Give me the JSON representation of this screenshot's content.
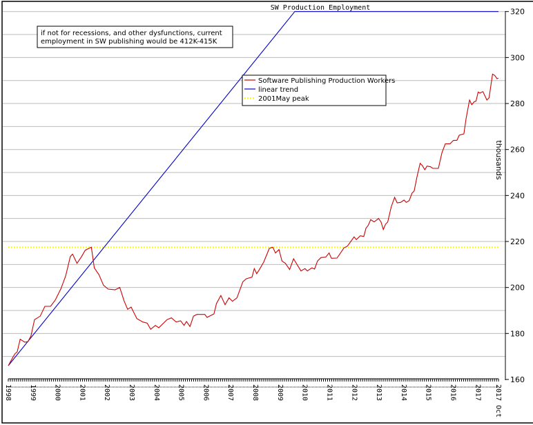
{
  "chart_data": {
    "type": "line",
    "title": "SW Production Employment",
    "xlabel": "",
    "ylabel": "thousands",
    "ylim": [
      160,
      320
    ],
    "yticks": [
      160,
      180,
      200,
      220,
      240,
      260,
      280,
      300,
      320
    ],
    "ygrid_step": 10,
    "xlim": [
      1998.0,
      2017.83
    ],
    "xtick_labels": [
      {
        "x": 1998,
        "label": "1998"
      },
      {
        "x": 1999,
        "label": "1999"
      },
      {
        "x": 2000,
        "label": "2000"
      },
      {
        "x": 2001,
        "label": "2001"
      },
      {
        "x": 2002,
        "label": "2002"
      },
      {
        "x": 2003,
        "label": "2003"
      },
      {
        "x": 2004,
        "label": "2004"
      },
      {
        "x": 2005,
        "label": "2005"
      },
      {
        "x": 2006,
        "label": "2006"
      },
      {
        "x": 2007,
        "label": "2007"
      },
      {
        "x": 2008,
        "label": "2008"
      },
      {
        "x": 2009,
        "label": "2009"
      },
      {
        "x": 2010,
        "label": "2010"
      },
      {
        "x": 2011,
        "label": "2011"
      },
      {
        "x": 2012,
        "label": "2012"
      },
      {
        "x": 2013,
        "label": "2013"
      },
      {
        "x": 2014,
        "label": "2014"
      },
      {
        "x": 2015,
        "label": "2015"
      },
      {
        "x": 2016,
        "label": "2016"
      },
      {
        "x": 2017,
        "label": "2017"
      },
      {
        "x": 2017.83,
        "label": "2017 Oct"
      }
    ],
    "grid": true,
    "legend_position": "upper-center",
    "annotation": "if not for recessions, and other dysfunctions, current employment in SW publishing would be 412K-415K",
    "annotation_lines": [
      "if not for recessions, and other dysfunctions, current",
      "employment in SW publishing would be 412K-415K"
    ],
    "series": [
      {
        "name": "Software Publishing Production Workers",
        "color": "#cc0000",
        "style": "solid",
        "x": [
          1998.0,
          1998.18,
          1998.27,
          1998.36,
          1998.48,
          1998.67,
          1998.8,
          1998.92,
          1999.06,
          1999.29,
          1999.48,
          1999.71,
          1999.9,
          2000.13,
          2000.32,
          2000.51,
          2000.6,
          2000.78,
          2000.97,
          2001.11,
          2001.36,
          2001.48,
          2001.67,
          2001.85,
          2002.04,
          2002.32,
          2002.51,
          2002.69,
          2002.83,
          2002.97,
          2003.2,
          2003.44,
          2003.62,
          2003.76,
          2003.95,
          2004.09,
          2004.42,
          2004.6,
          2004.79,
          2004.97,
          2005.11,
          2005.21,
          2005.35,
          2005.49,
          2005.63,
          2005.95,
          2006.04,
          2006.32,
          2006.42,
          2006.6,
          2006.77,
          2006.93,
          2007.07,
          2007.25,
          2007.49,
          2007.63,
          2007.86,
          2007.95,
          2008.05,
          2008.14,
          2008.33,
          2008.56,
          2008.7,
          2008.81,
          2008.95,
          2009.07,
          2009.21,
          2009.38,
          2009.54,
          2009.68,
          2009.84,
          2010.0,
          2010.1,
          2010.28,
          2010.39,
          2010.51,
          2010.65,
          2010.84,
          2010.98,
          2011.07,
          2011.3,
          2011.58,
          2011.72,
          2011.99,
          2012.08,
          2012.24,
          2012.38,
          2012.47,
          2012.56,
          2012.66,
          2012.8,
          2012.98,
          2013.08,
          2013.17,
          2013.26,
          2013.35,
          2013.49,
          2013.63,
          2013.73,
          2013.87,
          2014.01,
          2014.1,
          2014.22,
          2014.33,
          2014.42,
          2014.52,
          2014.66,
          2014.75,
          2014.85,
          2014.94,
          2015.08,
          2015.17,
          2015.4,
          2015.54,
          2015.68,
          2015.87,
          2016.01,
          2016.15,
          2016.24,
          2016.43,
          2016.52,
          2016.66,
          2016.75,
          2016.85,
          2016.92,
          2017.01,
          2017.08,
          2017.2,
          2017.36,
          2017.45,
          2017.59,
          2017.68,
          2017.77,
          2017.83
        ],
        "values": [
          166,
          169.5,
          171.2,
          172,
          177.5,
          176.2,
          176.5,
          179,
          186,
          187.5,
          191.8,
          191.8,
          194.5,
          199.5,
          205,
          213.5,
          214.5,
          210.5,
          213.5,
          216.2,
          217.5,
          208.5,
          205.5,
          201,
          199.3,
          199,
          200,
          194,
          190.5,
          191.5,
          186.5,
          185,
          184.5,
          181.8,
          183.5,
          182.5,
          186,
          186.8,
          185,
          185.5,
          183.5,
          185.2,
          183,
          187.5,
          188.3,
          188.3,
          187,
          188.5,
          193,
          196.5,
          192.5,
          195.5,
          194,
          195.5,
          202.5,
          203.8,
          204.5,
          208.2,
          206,
          207.5,
          211,
          217,
          217.5,
          215,
          216.5,
          211.5,
          210.5,
          207.8,
          212.5,
          210,
          207.2,
          208.2,
          207.2,
          208.5,
          208,
          211.5,
          213,
          213.2,
          215,
          212.7,
          212.8,
          217.2,
          218,
          222,
          220.8,
          222.5,
          222.2,
          225.8,
          227,
          229.5,
          228.5,
          230,
          228.5,
          225.2,
          227.5,
          228.5,
          235,
          239.2,
          236.8,
          237,
          238,
          237,
          237.8,
          241,
          242,
          247.5,
          254,
          253,
          251.2,
          252.8,
          252.5,
          251.8,
          251.8,
          258.5,
          262.5,
          262.5,
          264,
          264,
          266.2,
          266.8,
          273.5,
          281.5,
          279.5,
          280.8,
          281,
          285,
          284.5,
          285.2,
          281.5,
          282.5,
          292.8,
          292.2,
          290.8,
          291
        ]
      },
      {
        "name": "linear trend",
        "color": "#0000cc",
        "style": "solid",
        "x": [
          1998.0,
          2009.59,
          2017.83
        ],
        "values": [
          166,
          320,
          320
        ]
      },
      {
        "name": "2001May peak",
        "color": "#ffff00",
        "style": "dotted",
        "x": [
          1998.0,
          2017.83
        ],
        "values": [
          217.5,
          217.5
        ]
      }
    ]
  }
}
